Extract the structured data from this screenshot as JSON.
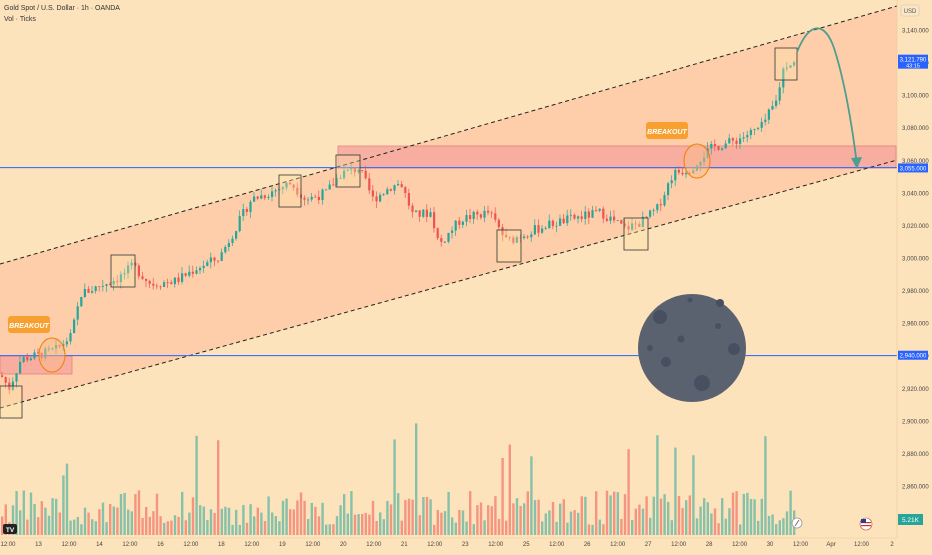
{
  "header": {
    "symbol_line": "Gold Spot / U.S. Dollar · 1h · OANDA",
    "volume_line": "Vol · Ticks"
  },
  "currency": "USD",
  "chart_data": {
    "type": "candlestick",
    "title": "Gold Spot / U.S. Dollar · 1h · OANDA",
    "y_axis_ticks": [
      "3,140.000",
      "3,120.000",
      "3,100.000",
      "3,080.000",
      "3,060.000",
      "3,040.000",
      "3,020.000",
      "3,000.000",
      "2,980.000",
      "2,960.000",
      "2,940.000",
      "2,920.000",
      "2,900.000",
      "2,880.000",
      "2,860.000"
    ],
    "y_range": [
      2842,
      3151
    ],
    "x_axis_ticks": [
      "12:00",
      "13",
      "12:00",
      "14",
      "12:00",
      "16",
      "12:00",
      "18",
      "12:00",
      "19",
      "12:00",
      "20",
      "12:00",
      "21",
      "12:00",
      "23",
      "12:00",
      "25",
      "12:00",
      "26",
      "12:00",
      "27",
      "12:00",
      "28",
      "12:00",
      "30",
      "12:00",
      "Apr",
      "12:00",
      "2"
    ],
    "price_labels": [
      {
        "text": "3,121.790",
        "sub": "43:15",
        "value": 3121.79,
        "color": "#2962ff"
      },
      {
        "text": "3,055.000",
        "value": 3055.0,
        "color": "#2962ff"
      },
      {
        "text": "2,940.000",
        "value": 2940.0,
        "color": "#2962ff"
      }
    ],
    "volume_label": "5.21K",
    "annotations": [
      {
        "text": "BREAKOUT",
        "near": "2,940.000"
      },
      {
        "text": "BREAKOUT",
        "near": "3,055.000"
      }
    ],
    "horizontal_levels": [
      2940.0,
      3055.0
    ],
    "supply_zones": [
      [
        2932,
        2946
      ],
      [
        3055,
        3068
      ]
    ],
    "channel": {
      "upper": [
        [
          2970,
          3140
        ]
      ],
      "lower": [
        [
          2900,
          3060
        ]
      ]
    },
    "colors": {
      "up": "#26a69a",
      "down": "#ef5350",
      "level": "#2962ff",
      "zone": "#f7a99f",
      "moon": "#5a6270"
    },
    "grid": false,
    "legend": "top-left"
  },
  "series_waypoints": [
    [
      0,
      2928
    ],
    [
      8,
      2920
    ],
    [
      20,
      2938
    ],
    [
      36,
      2940
    ],
    [
      56,
      2944
    ],
    [
      70,
      2952
    ],
    [
      80,
      2978
    ],
    [
      95,
      2982
    ],
    [
      118,
      2988
    ],
    [
      132,
      2995
    ],
    [
      150,
      2984
    ],
    [
      175,
      2986
    ],
    [
      196,
      2994
    ],
    [
      218,
      3000
    ],
    [
      236,
      3020
    ],
    [
      250,
      3036
    ],
    [
      268,
      3040
    ],
    [
      290,
      3046
    ],
    [
      305,
      3036
    ],
    [
      325,
      3040
    ],
    [
      340,
      3052
    ],
    [
      358,
      3055
    ],
    [
      372,
      3036
    ],
    [
      390,
      3044
    ],
    [
      400,
      3046
    ],
    [
      412,
      3026
    ],
    [
      430,
      3028
    ],
    [
      438,
      3008
    ],
    [
      460,
      3024
    ],
    [
      488,
      3028
    ],
    [
      506,
      3010
    ],
    [
      520,
      3014
    ],
    [
      545,
      3020
    ],
    [
      570,
      3024
    ],
    [
      600,
      3028
    ],
    [
      624,
      3018
    ],
    [
      640,
      3022
    ],
    [
      656,
      3030
    ],
    [
      672,
      3052
    ],
    [
      690,
      3055
    ],
    [
      700,
      3062
    ],
    [
      712,
      3068
    ],
    [
      734,
      3072
    ],
    [
      760,
      3080
    ],
    [
      775,
      3096
    ],
    [
      783,
      3118
    ],
    [
      792,
      3121
    ]
  ]
}
